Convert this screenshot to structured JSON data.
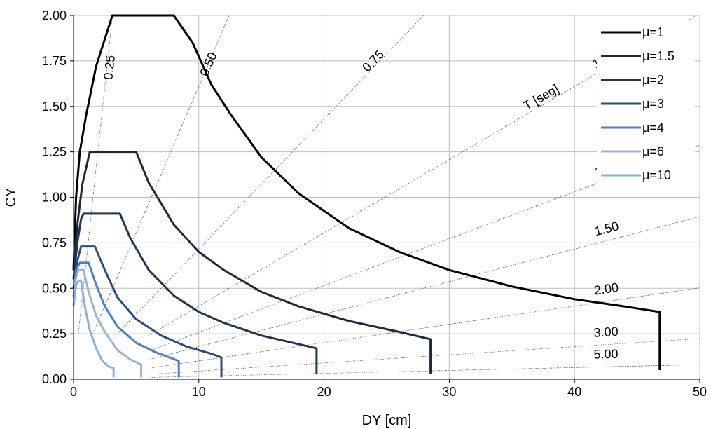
{
  "chart_data": {
    "type": "line",
    "title": "",
    "xlabel": "DY [cm]",
    "ylabel": "CY",
    "xlim": [
      0,
      50
    ],
    "ylim": [
      0,
      2
    ],
    "xticks": [
      0,
      10,
      20,
      30,
      40,
      50
    ],
    "xtick_labels": [
      "0",
      "10",
      "20",
      "30",
      "40",
      "50"
    ],
    "yticks": [
      0,
      0.25,
      0.5,
      0.75,
      1.0,
      1.25,
      1.5,
      1.75,
      2.0
    ],
    "ytick_labels": [
      "0.00",
      "0.25",
      "0.50",
      "0.75",
      "1.00",
      "1.25",
      "1.50",
      "1.75",
      "2.00"
    ],
    "grid": true,
    "legend_position": "top-right",
    "period_title": "T [seg]",
    "period_lines": [
      {
        "label": "0.25",
        "T": 0.25
      },
      {
        "label": "0.50",
        "T": 0.5
      },
      {
        "label": "0.75",
        "T": 0.75
      },
      {
        "label": "1.00",
        "T": 1.0
      },
      {
        "label": "1.25",
        "T": 1.25
      },
      {
        "label": "1.50",
        "T": 1.5
      },
      {
        "label": "2.00",
        "T": 2.0
      },
      {
        "label": "3.00",
        "T": 3.0
      },
      {
        "label": "5.00",
        "T": 5.0
      }
    ],
    "series": [
      {
        "name": "μ=1",
        "color": "#000000",
        "points": [
          [
            0,
            0.6
          ],
          [
            0.2,
            1.0
          ],
          [
            0.5,
            1.25
          ],
          [
            1,
            1.45
          ],
          [
            1.8,
            1.72
          ],
          [
            3.1,
            2.0
          ],
          [
            8,
            2.0
          ],
          [
            9.5,
            1.85
          ],
          [
            11,
            1.62
          ],
          [
            12.5,
            1.46
          ],
          [
            15,
            1.22
          ],
          [
            18,
            1.02
          ],
          [
            22,
            0.83
          ],
          [
            26,
            0.7
          ],
          [
            30,
            0.6
          ],
          [
            35,
            0.51
          ],
          [
            40,
            0.44
          ],
          [
            44,
            0.4
          ],
          [
            46.8,
            0.37
          ],
          [
            46.8,
            0.05
          ]
        ]
      },
      {
        "name": "μ=1.5",
        "color": "#1c2a40",
        "points": [
          [
            0,
            0.6
          ],
          [
            0.3,
            0.85
          ],
          [
            0.7,
            1.07
          ],
          [
            1.3,
            1.25
          ],
          [
            5,
            1.25
          ],
          [
            6,
            1.08
          ],
          [
            8,
            0.85
          ],
          [
            10,
            0.7
          ],
          [
            12,
            0.6
          ],
          [
            15,
            0.48
          ],
          [
            18,
            0.4
          ],
          [
            22,
            0.32
          ],
          [
            26,
            0.26
          ],
          [
            28.5,
            0.22
          ],
          [
            28.5,
            0.03
          ]
        ]
      },
      {
        "name": "μ=2",
        "color": "#1f3550",
        "points": [
          [
            0,
            0.55
          ],
          [
            0.3,
            0.75
          ],
          [
            0.6,
            0.88
          ],
          [
            0.8,
            0.91
          ],
          [
            3.7,
            0.91
          ],
          [
            4.5,
            0.78
          ],
          [
            6,
            0.6
          ],
          [
            8,
            0.46
          ],
          [
            10,
            0.37
          ],
          [
            12,
            0.31
          ],
          [
            15,
            0.24
          ],
          [
            17.5,
            0.2
          ],
          [
            19.4,
            0.17
          ],
          [
            19.4,
            0.03
          ]
        ]
      },
      {
        "name": "μ=3",
        "color": "#2b4d7a",
        "points": [
          [
            0,
            0.5
          ],
          [
            0.3,
            0.65
          ],
          [
            0.6,
            0.73
          ],
          [
            1.7,
            0.73
          ],
          [
            2.5,
            0.6
          ],
          [
            3.5,
            0.45
          ],
          [
            5,
            0.33
          ],
          [
            7,
            0.24
          ],
          [
            9,
            0.18
          ],
          [
            11,
            0.14
          ],
          [
            11.8,
            0.12
          ],
          [
            11.8,
            0.01
          ]
        ]
      },
      {
        "name": "μ=4",
        "color": "#4f7ec5",
        "points": [
          [
            0,
            0.45
          ],
          [
            0.2,
            0.6
          ],
          [
            0.5,
            0.64
          ],
          [
            1.2,
            0.64
          ],
          [
            1.8,
            0.52
          ],
          [
            2.5,
            0.4
          ],
          [
            3.5,
            0.29
          ],
          [
            5,
            0.2
          ],
          [
            6.5,
            0.15
          ],
          [
            8.4,
            0.1
          ],
          [
            8.4,
            0.01
          ]
        ]
      },
      {
        "name": "μ=6",
        "color": "#9bb4d6",
        "points": [
          [
            0,
            0.45
          ],
          [
            0.2,
            0.56
          ],
          [
            0.4,
            0.6
          ],
          [
            0.8,
            0.6
          ],
          [
            1.2,
            0.48
          ],
          [
            1.8,
            0.35
          ],
          [
            2.5,
            0.26
          ],
          [
            3.5,
            0.16
          ],
          [
            4.5,
            0.11
          ],
          [
            5.4,
            0.08
          ],
          [
            5.4,
            0.01
          ]
        ]
      },
      {
        "name": "μ=10",
        "color": "#8db0e0",
        "points": [
          [
            0,
            0.4
          ],
          [
            0.2,
            0.52
          ],
          [
            0.4,
            0.54
          ],
          [
            0.6,
            0.54
          ],
          [
            0.9,
            0.4
          ],
          [
            1.3,
            0.27
          ],
          [
            1.8,
            0.17
          ],
          [
            2.3,
            0.1
          ],
          [
            2.8,
            0.07
          ],
          [
            3.2,
            0.06
          ],
          [
            3.2,
            0.01
          ]
        ]
      }
    ]
  }
}
